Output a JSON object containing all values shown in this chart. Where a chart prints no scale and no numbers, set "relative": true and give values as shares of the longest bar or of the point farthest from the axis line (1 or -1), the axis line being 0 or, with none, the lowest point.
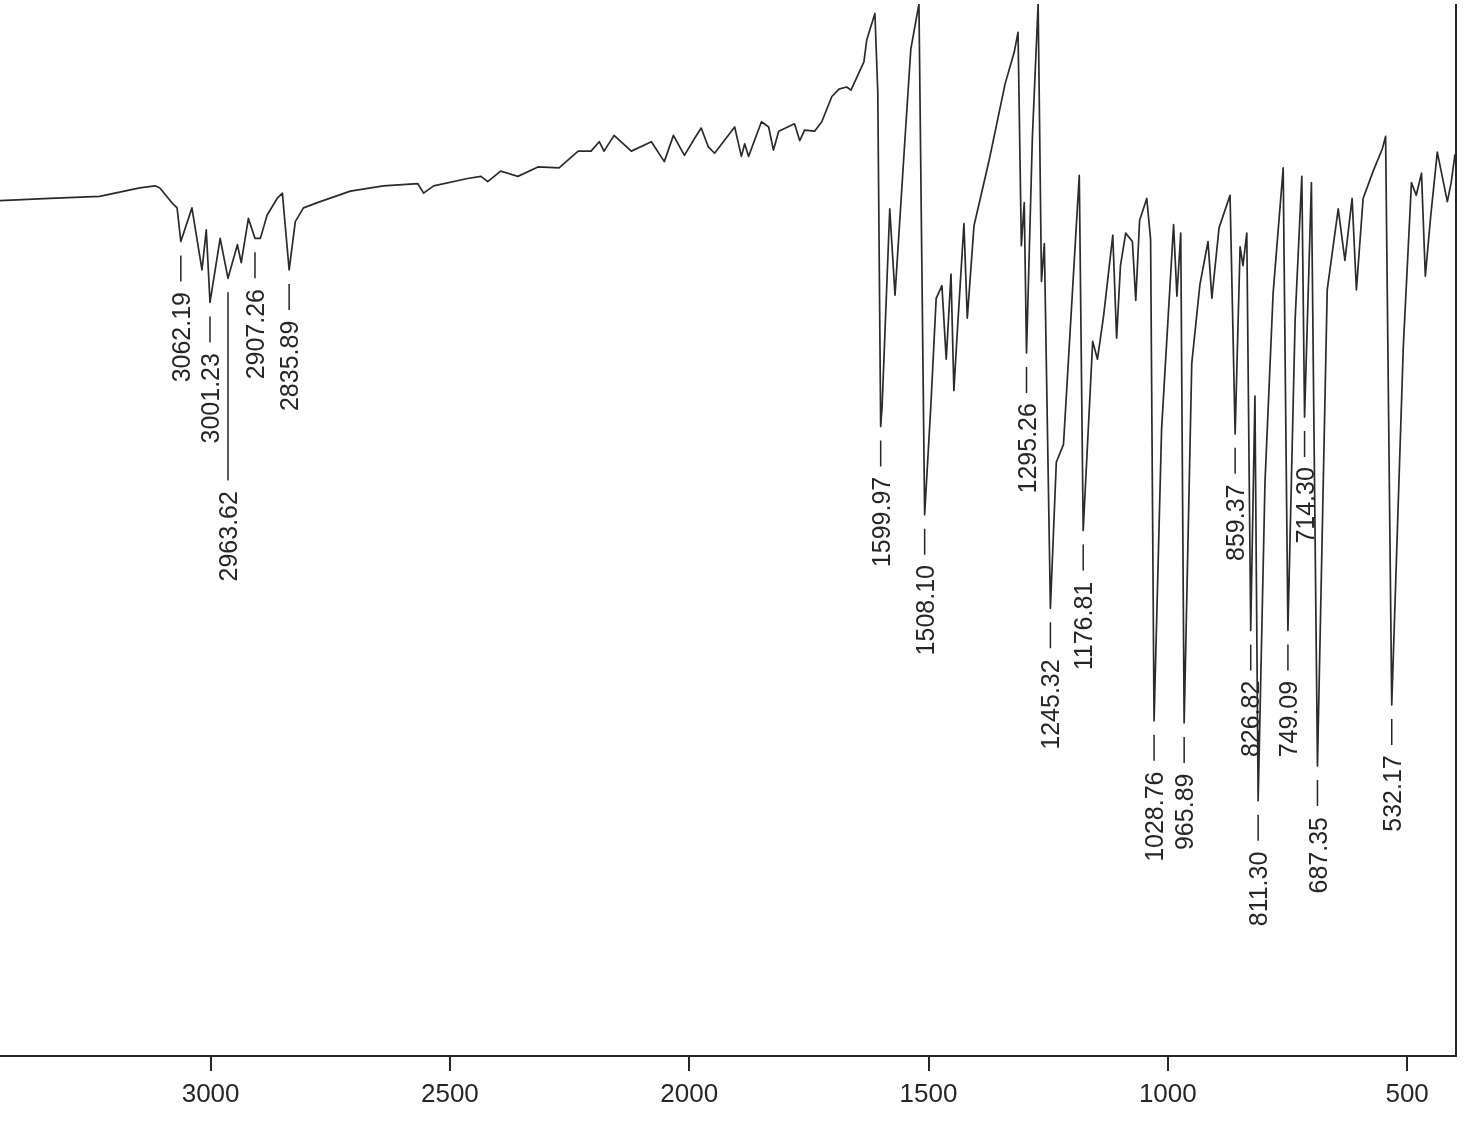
{
  "chart_data": {
    "type": "line",
    "relative": true,
    "color": "#2b2b2b",
    "xlim": [
      3440,
      400
    ],
    "xticks": [
      3000,
      2500,
      2000,
      1500,
      1000,
      500
    ],
    "x": [
      3440,
      3336,
      3232,
      3148,
      3116,
      3106,
      3079,
      3070,
      3062.19,
      3039,
      3018,
      3009,
      3001.23,
      2980,
      2963.62,
      2944,
      2936,
      2921,
      2907.26,
      2896,
      2882,
      2861,
      2850,
      2835.89,
      2823,
      2806,
      2771,
      2708,
      2639,
      2567,
      2555,
      2534,
      2463,
      2435,
      2421,
      2394,
      2358,
      2316,
      2272,
      2232,
      2205,
      2188,
      2178,
      2157,
      2121,
      2079,
      2052,
      2033,
      2010,
      1989,
      1975,
      1960,
      1947,
      1905,
      1891,
      1884,
      1876,
      1849,
      1834,
      1824,
      1813,
      1780,
      1769,
      1759,
      1738,
      1723,
      1702,
      1687,
      1671,
      1662,
      1635,
      1629,
      1612,
      1606,
      1599.97,
      1597,
      1581,
      1570,
      1549,
      1537,
      1520,
      1508.1,
      1495,
      1484,
      1472,
      1463,
      1453,
      1447,
      1440,
      1426,
      1419,
      1405,
      1373,
      1340,
      1321,
      1313,
      1306,
      1300,
      1295.26,
      1283,
      1271,
      1264,
      1258,
      1245.32,
      1233,
      1218,
      1185,
      1176.81,
      1157,
      1147,
      1134,
      1115,
      1107,
      1099,
      1088,
      1074,
      1067,
      1059,
      1044,
      1036,
      1028.76,
      1013,
      988,
      981,
      973,
      965.89,
      950,
      933,
      916,
      908,
      893,
      870,
      859.37,
      849,
      843,
      835,
      826.82,
      818,
      811.3,
      797,
      780,
      759,
      749.09,
      734,
      720,
      714.3,
      700,
      687.35,
      667,
      644,
      630,
      615,
      606,
      592,
      571,
      552,
      545,
      532.17,
      508,
      491,
      481,
      470,
      462,
      451,
      437,
      424,
      416,
      408,
      400
    ],
    "values": [
      0.813,
      0.815,
      0.817,
      0.825,
      0.827,
      0.825,
      0.81,
      0.806,
      0.774,
      0.806,
      0.747,
      0.785,
      0.716,
      0.777,
      0.739,
      0.771,
      0.754,
      0.796,
      0.777,
      0.777,
      0.799,
      0.815,
      0.82,
      0.747,
      0.793,
      0.806,
      0.812,
      0.822,
      0.827,
      0.829,
      0.82,
      0.827,
      0.834,
      0.836,
      0.831,
      0.841,
      0.836,
      0.845,
      0.844,
      0.86,
      0.86,
      0.869,
      0.86,
      0.875,
      0.86,
      0.869,
      0.85,
      0.875,
      0.856,
      0.872,
      0.882,
      0.864,
      0.858,
      0.883,
      0.855,
      0.867,
      0.855,
      0.888,
      0.883,
      0.861,
      0.879,
      0.886,
      0.87,
      0.88,
      0.879,
      0.888,
      0.912,
      0.919,
      0.921,
      0.918,
      0.945,
      0.966,
      0.991,
      0.916,
      0.598,
      0.617,
      0.805,
      0.723,
      0.873,
      0.957,
      1.0,
      0.514,
      0.619,
      0.72,
      0.732,
      0.662,
      0.743,
      0.632,
      0.687,
      0.791,
      0.701,
      0.789,
      0.852,
      0.924,
      0.954,
      0.973,
      0.77,
      0.811,
      0.668,
      0.873,
      1.0,
      0.736,
      0.772,
      0.425,
      0.564,
      0.581,
      0.837,
      0.499,
      0.679,
      0.662,
      0.704,
      0.78,
      0.682,
      0.751,
      0.782,
      0.774,
      0.718,
      0.794,
      0.815,
      0.776,
      0.318,
      0.596,
      0.79,
      0.722,
      0.782,
      0.316,
      0.658,
      0.733,
      0.774,
      0.72,
      0.787,
      0.818,
      0.591,
      0.769,
      0.751,
      0.782,
      0.404,
      0.627,
      0.242,
      0.545,
      0.725,
      0.844,
      0.404,
      0.7,
      0.836,
      0.607,
      0.83,
      0.275,
      0.728,
      0.805,
      0.756,
      0.815,
      0.728,
      0.815,
      0.841,
      0.862,
      0.874,
      0.333,
      0.674,
      0.83,
      0.818,
      0.839,
      0.741,
      0.797,
      0.859,
      0.83,
      0.812,
      0.83,
      0.857
    ],
    "annotations": [
      {
        "text": "3062.19",
        "x": 3062.19,
        "y": 0.774
      },
      {
        "text": "3001.23",
        "x": 3001.23,
        "y": 0.716
      },
      {
        "text": "2963.62",
        "x": 2963.62,
        "y": 0.739
      },
      {
        "text": "2907.26",
        "x": 2907.26,
        "y": 0.777
      },
      {
        "text": "2835.89",
        "x": 2835.89,
        "y": 0.747
      },
      {
        "text": "1599.97",
        "x": 1599.97,
        "y": 0.598
      },
      {
        "text": "1508.10",
        "x": 1508.1,
        "y": 0.514
      },
      {
        "text": "1295.26",
        "x": 1295.26,
        "y": 0.668
      },
      {
        "text": "1245.32",
        "x": 1245.32,
        "y": 0.425
      },
      {
        "text": "1176.81",
        "x": 1176.81,
        "y": 0.499
      },
      {
        "text": "1028.76",
        "x": 1028.76,
        "y": 0.318
      },
      {
        "text": "965.89",
        "x": 965.89,
        "y": 0.316
      },
      {
        "text": "859.37",
        "x": 859.37,
        "y": 0.591
      },
      {
        "text": "826.82",
        "x": 826.82,
        "y": 0.404
      },
      {
        "text": "811.30",
        "x": 811.3,
        "y": 0.242
      },
      {
        "text": "749.09",
        "x": 749.09,
        "y": 0.404
      },
      {
        "text": "714.30",
        "x": 714.3,
        "y": 0.607
      },
      {
        "text": "687.35",
        "x": 687.35,
        "y": 0.275
      },
      {
        "text": "532.17",
        "x": 532.17,
        "y": 0.333
      }
    ]
  }
}
